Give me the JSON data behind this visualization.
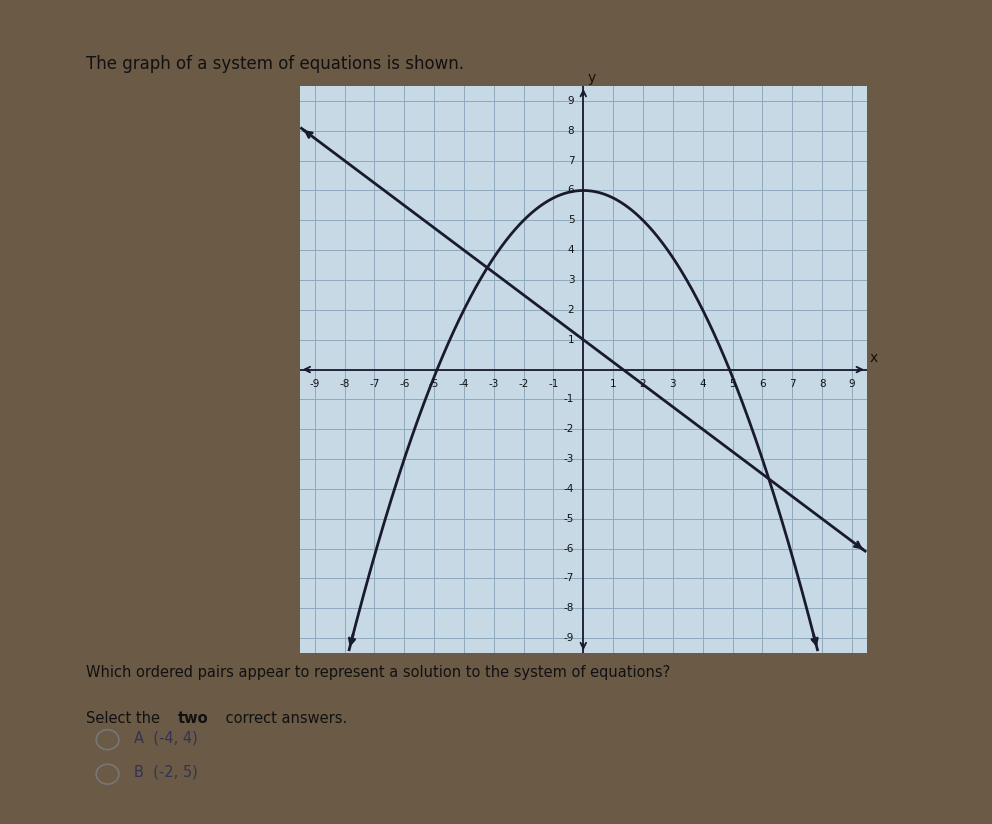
{
  "title": "The graph of a system of equations is shown.",
  "question": "Which ordered pairs appear to represent a solution to the system of equations?",
  "instruction_pre": "Select the ",
  "instruction_bold": "two",
  "instruction_post": " correct answers.",
  "choice_labels": [
    "A  (-4, 4)",
    "B  (-2, 5)"
  ],
  "line_color": "#1a1a2e",
  "parabola_color": "#1a1a2e",
  "grid_color": "#8fa8bc",
  "grid_lw": 0.7,
  "axis_color": "#1a1a2e",
  "bg_outer": "#6b5a45",
  "bg_panel": "#f2f0ec",
  "bg_plot": "#c8d9e6",
  "xmin": -9,
  "xmax": 9,
  "ymin": -9,
  "ymax": 9,
  "line_slope": -0.75,
  "line_intercept": 1.0,
  "para_a": -0.25,
  "para_b": 0.0,
  "para_c": 6.0,
  "title_fontsize": 12,
  "question_fontsize": 10.5,
  "tick_fontsize": 7.5,
  "choice_fontsize": 10.5
}
